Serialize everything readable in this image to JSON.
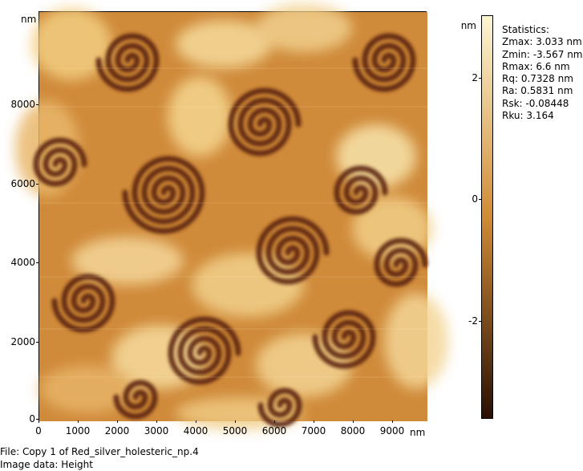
{
  "image": {
    "x_unit": "nm",
    "y_unit": "nm",
    "x_ticks": [
      "0",
      "1000",
      "2000",
      "3000",
      "4000",
      "5000",
      "6000",
      "7000",
      "8000",
      "9000"
    ],
    "y_ticks": [
      "0",
      "2000",
      "4000",
      "6000",
      "8000"
    ],
    "description_colors": {
      "dark": "#3a1604",
      "mid": "#b8641a",
      "light": "#f3d38c",
      "highlight": "#fcebb8"
    }
  },
  "colorbar": {
    "unit": "nm",
    "ticks": [
      "2",
      "0",
      "-2"
    ],
    "gradient_top": "#fdf6d3",
    "gradient_mid": "#d08b35",
    "gradient_bottom": "#2a0f03"
  },
  "statistics": {
    "title": "Statistics:",
    "zmax": "Zmax: 3.033 nm",
    "zmin": "Zmin: -3.567 nm",
    "rmax": "Rmax: 6.6 nm",
    "rq": "Rq: 0.7328 nm",
    "ra": "Ra: 0.5831 nm",
    "rsk": "Rsk: -0.08448",
    "rku": "Rku: 3.164"
  },
  "footer": {
    "file": "File: Copy 1 of Red_silver_holesteric_np.4",
    "image_data": "Image data: Height"
  }
}
